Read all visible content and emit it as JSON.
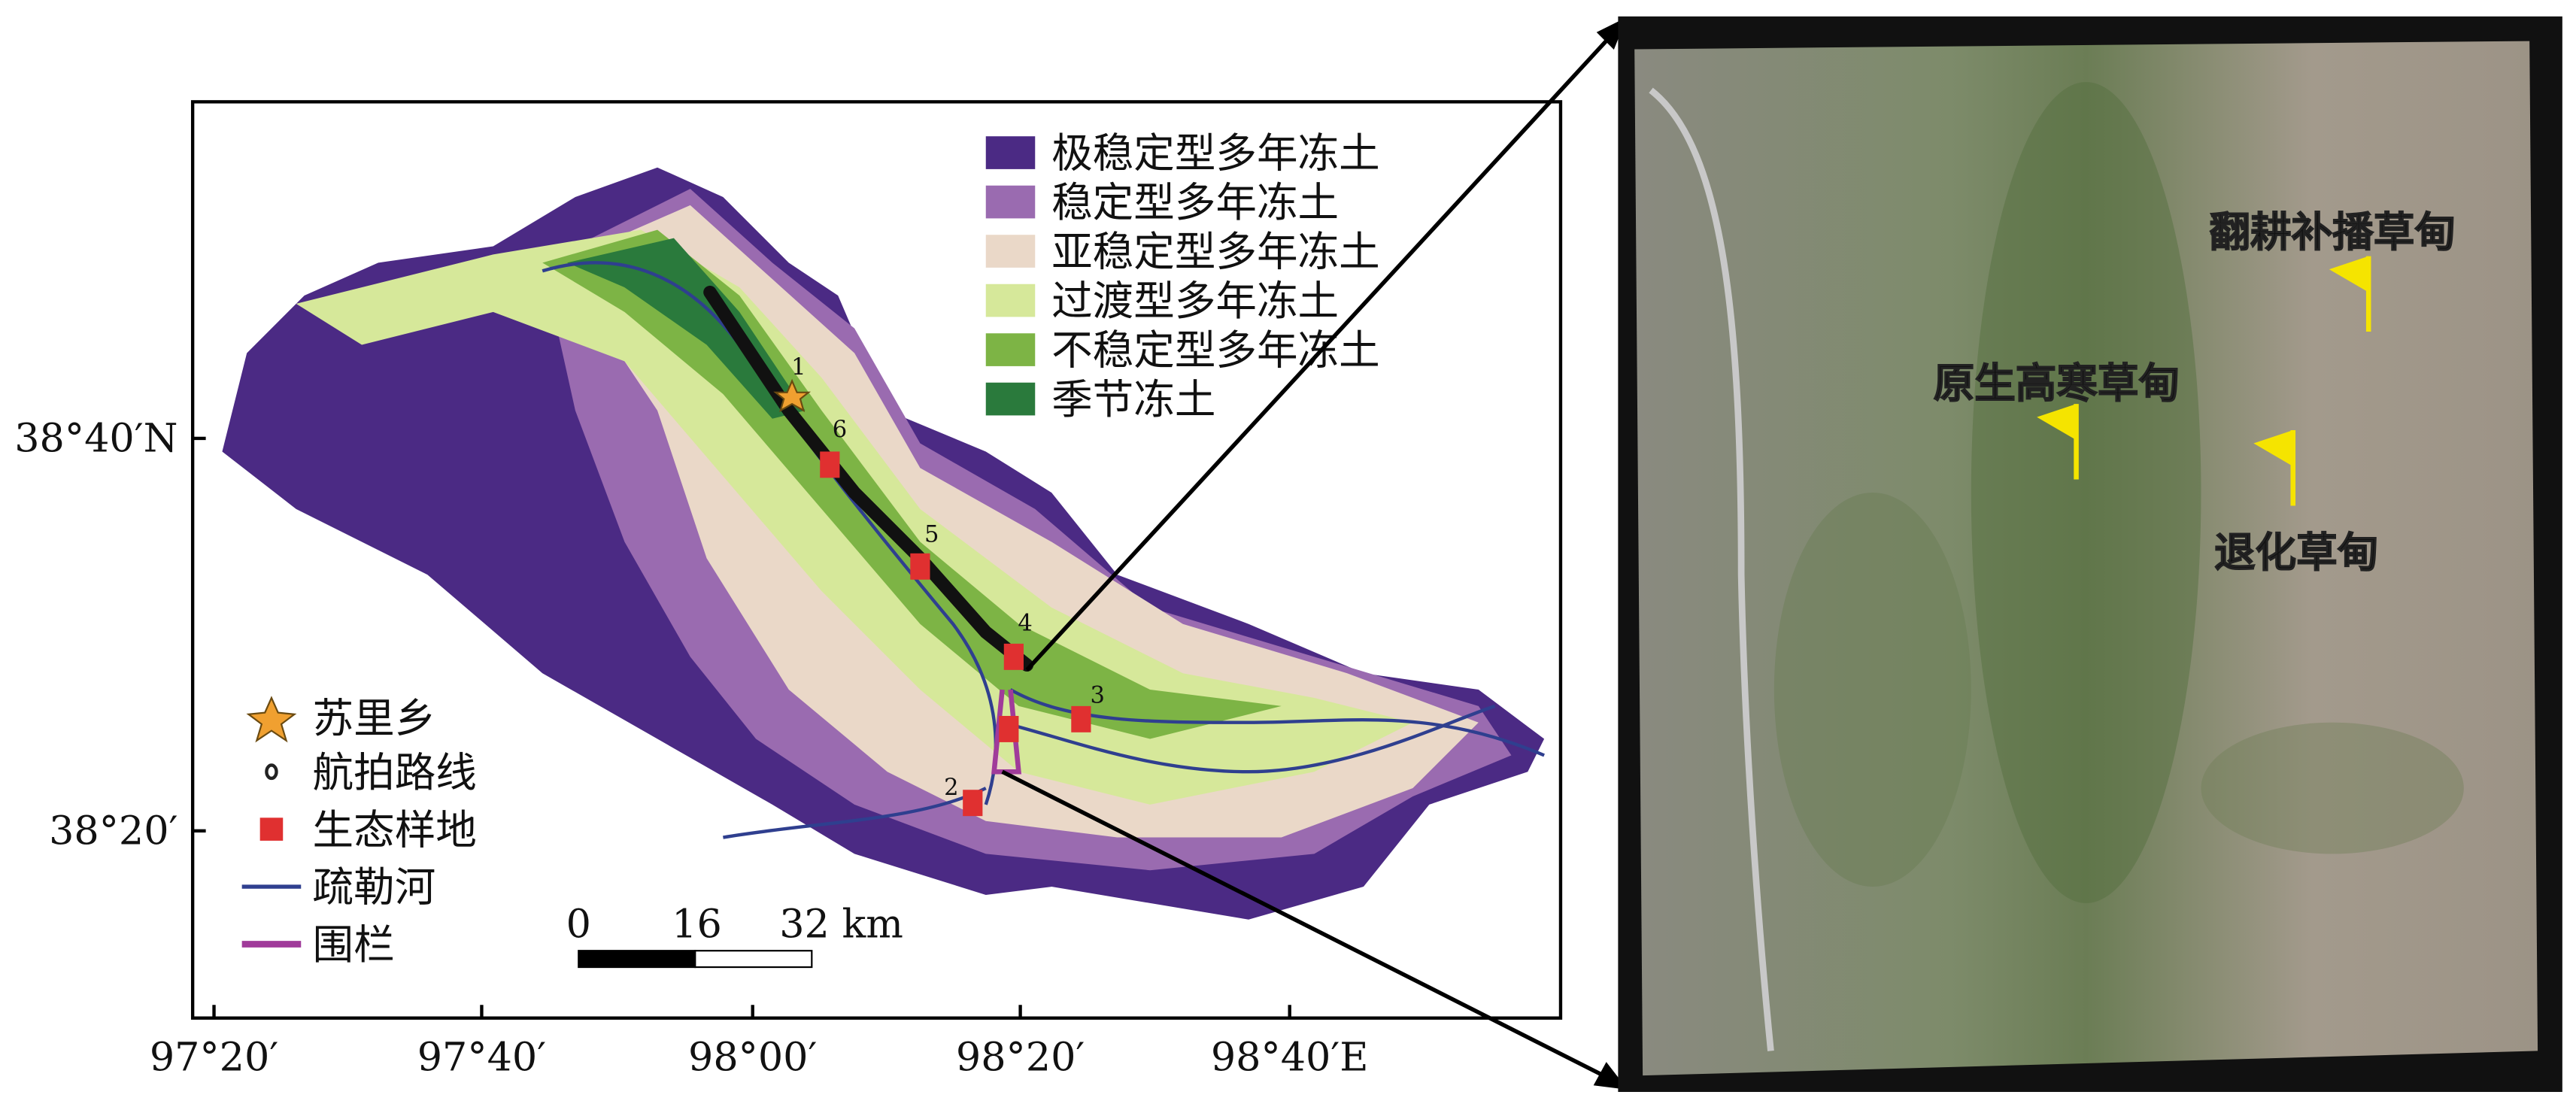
{
  "map": {
    "x_ticks": [
      "97°20′",
      "97°40′",
      "98°00′",
      "98°20′",
      "98°40′E"
    ],
    "y_ticks": [
      "38°40′N",
      "38°20′"
    ],
    "legend_zones": [
      {
        "label": "极稳定型多年冻土",
        "color": "#4b2a84"
      },
      {
        "label": "稳定型多年冻土",
        "color": "#9a6bb0"
      },
      {
        "label": "亚稳定型多年冻土",
        "color": "#ead8c8"
      },
      {
        "label": "过渡型多年冻土",
        "color": "#d6e89a"
      },
      {
        "label": "不稳定型多年冻土",
        "color": "#7db445"
      },
      {
        "label": "季节冻土",
        "color": "#2a7a3c"
      }
    ],
    "legend_symbols": [
      "苏里乡",
      "航拍路线",
      "生态样地",
      "疏勒河",
      "围栏"
    ],
    "scale_bar": [
      "0",
      "16",
      "32 km"
    ],
    "site_labels": [
      "1",
      "2",
      "3",
      "4",
      "5",
      "6"
    ]
  },
  "aerial_photo": {
    "labels": [
      "翻耕补播草甸",
      "原生高寒草甸",
      "退化草甸"
    ]
  }
}
